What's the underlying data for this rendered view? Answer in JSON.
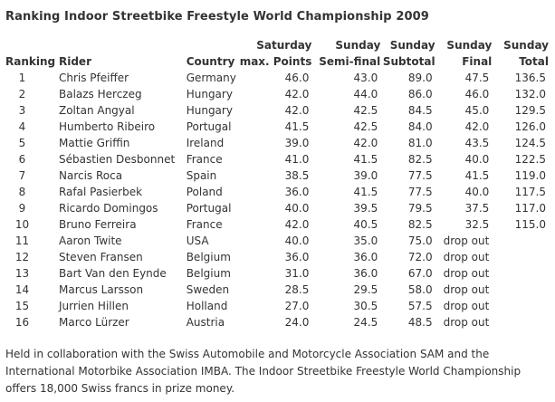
{
  "title": "Ranking Indoor Streetbike Freestyle World Championship 2009",
  "headers": {
    "ranking": "Ranking",
    "rider": "Rider",
    "country": "Country",
    "saturday": [
      "Saturday",
      "max. Points"
    ],
    "semifinal": [
      "Sunday",
      "Semi-final"
    ],
    "subtotal": [
      "Sunday",
      "Subtotal"
    ],
    "final": [
      "Sunday",
      "Final"
    ],
    "total": [
      "Sunday",
      "Total"
    ]
  },
  "rows": [
    {
      "rank": "1",
      "rider": "Chris Pfeiffer",
      "country": "Germany",
      "sat": "46.0",
      "semi": "43.0",
      "subtotal": "89.0",
      "final": "47.5",
      "total": "136.5"
    },
    {
      "rank": "2",
      "rider": "Balazs Herczeg",
      "country": "Hungary",
      "sat": "42.0",
      "semi": "44.0",
      "subtotal": "86.0",
      "final": "46.0",
      "total": "132.0"
    },
    {
      "rank": "3",
      "rider": "Zoltan Angyal",
      "country": "Hungary",
      "sat": "42.0",
      "semi": "42.5",
      "subtotal": "84.5",
      "final": "45.0",
      "total": "129.5"
    },
    {
      "rank": "4",
      "rider": "Humberto Ribeiro",
      "country": "Portugal",
      "sat": "41.5",
      "semi": "42.5",
      "subtotal": "84.0",
      "final": "42.0",
      "total": "126.0"
    },
    {
      "rank": "5",
      "rider": "Mattie Griffin",
      "country": "Ireland",
      "sat": "39.0",
      "semi": "42.0",
      "subtotal": "81.0",
      "final": "43.5",
      "total": "124.5"
    },
    {
      "rank": "6",
      "rider": "Sébastien Desbonnet",
      "country": "France",
      "sat": "41.0",
      "semi": "41.5",
      "subtotal": "82.5",
      "final": "40.0",
      "total": "122.5"
    },
    {
      "rank": "7",
      "rider": "Narcis Roca",
      "country": "Spain",
      "sat": "38.5",
      "semi": "39.0",
      "subtotal": "77.5",
      "final": "41.5",
      "total": "119.0"
    },
    {
      "rank": "8",
      "rider": "Rafal Pasierbek",
      "country": "Poland",
      "sat": "36.0",
      "semi": "41.5",
      "subtotal": "77.5",
      "final": "40.0",
      "total": "117.5"
    },
    {
      "rank": "9",
      "rider": "Ricardo Domingos",
      "country": "Portugal",
      "sat": "40.0",
      "semi": "39.5",
      "subtotal": "79.5",
      "final": "37.5",
      "total": "117.0"
    },
    {
      "rank": "10",
      "rider": "Bruno Ferreira",
      "country": "France",
      "sat": "42.0",
      "semi": "40.5",
      "subtotal": "82.5",
      "final": "32.5",
      "total": "115.0"
    },
    {
      "rank": "11",
      "rider": "Aaron Twite",
      "country": "USA",
      "sat": "40.0",
      "semi": "35.0",
      "subtotal": "75.0",
      "final": "drop out",
      "total": ""
    },
    {
      "rank": "12",
      "rider": "Steven Fransen",
      "country": "Belgium",
      "sat": "36.0",
      "semi": "36.0",
      "subtotal": "72.0",
      "final": "drop out",
      "total": ""
    },
    {
      "rank": "13",
      "rider": "Bart Van den Eynde",
      "country": "Belgium",
      "sat": "31.0",
      "semi": "36.0",
      "subtotal": "67.0",
      "final": "drop out",
      "total": ""
    },
    {
      "rank": "14",
      "rider": "Marcus Larsson",
      "country": "Sweden",
      "sat": "28.5",
      "semi": "29.5",
      "subtotal": "58.0",
      "final": "drop out",
      "total": ""
    },
    {
      "rank": "15",
      "rider": "Jurrien Hillen",
      "country": "Holland",
      "sat": "27.0",
      "semi": "30.5",
      "subtotal": "57.5",
      "final": "drop out",
      "total": ""
    },
    {
      "rank": "16",
      "rider": "Marco Lürzer",
      "country": "Austria",
      "sat": "24.0",
      "semi": "24.5",
      "subtotal": "48.5",
      "final": "drop out",
      "total": ""
    }
  ],
  "note": "Held in collaboration with the Swiss Automobile and Motorcycle Association SAM and the International Motorbike Association IMBA. The Indoor Streetbike Freestyle World Championship offers 18,000 Swiss francs in prize money."
}
